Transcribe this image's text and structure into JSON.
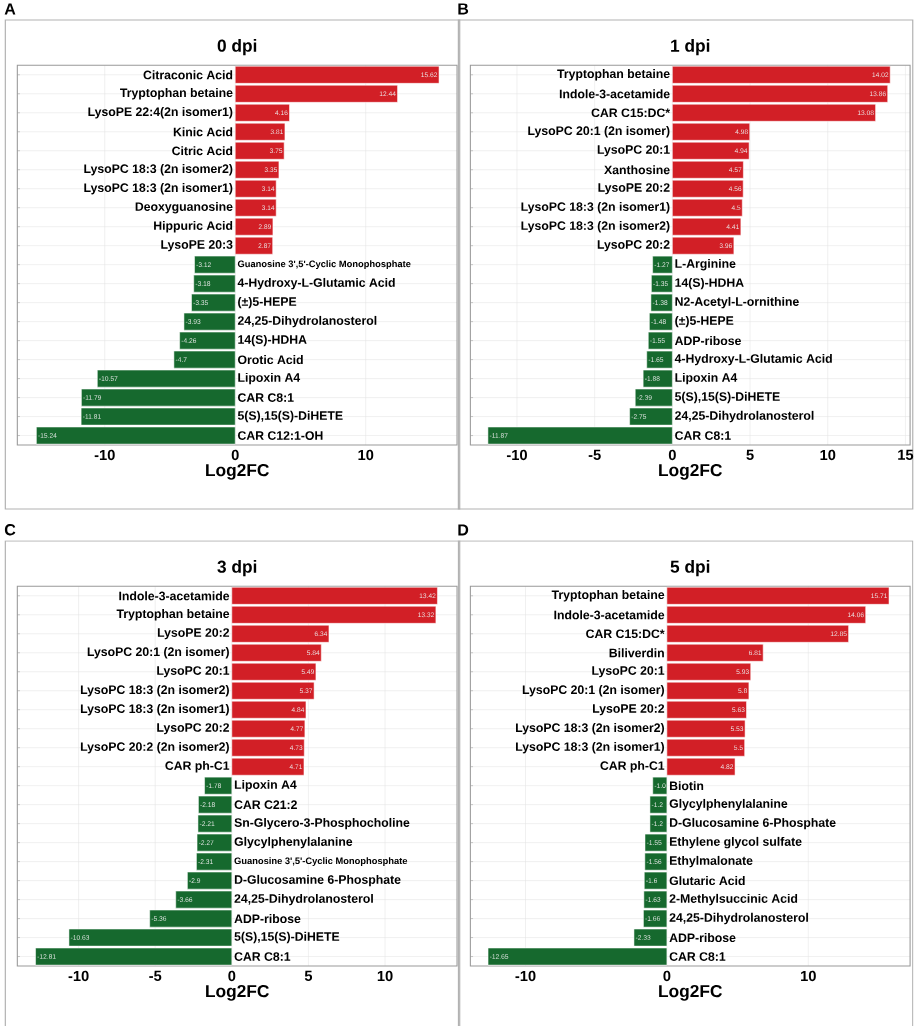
{
  "chart_data": [
    {
      "type": "bar",
      "orientation": "horizontal",
      "title": "0 dpi",
      "xlabel": "Log2FC",
      "annotations": [
        "A"
      ],
      "grid": true,
      "xlim": [
        -16.7,
        17
      ],
      "xticks": [
        -10,
        0,
        10
      ],
      "categories": [
        "Citraconic Acid",
        "Tryptophan betaine",
        "LysoPE 22:4(2n isomer1)",
        "Kinic Acid",
        "Citric Acid",
        "LysoPC 18:3 (2n isomer2)",
        "LysoPC 18:3 (2n isomer1)",
        "Deoxyguanosine",
        "Hippuric Acid",
        "LysoPE 20:3",
        "Guanosine 3',5'-Cyclic Monophosphate",
        "4-Hydroxy-L-Glutamic Acid",
        "(±)5-HEPE",
        "24,25-Dihydrolanosterol",
        "14(S)-HDHA",
        "Orotic Acid",
        "Lipoxin A4",
        "CAR C8:1",
        "5(S),15(S)-DiHETE",
        "CAR C12:1-OH"
      ],
      "values": [
        15.62,
        12.44,
        4.16,
        3.81,
        3.75,
        3.35,
        3.14,
        3.14,
        2.89,
        2.87,
        -3.12,
        -3.18,
        -3.35,
        -3.93,
        -4.26,
        -4.7,
        -10.57,
        -11.79,
        -11.81,
        -15.24
      ],
      "value_labels": [
        "15.62",
        "12.44",
        "4.16",
        "3.81",
        "3.75",
        "3.35",
        "3.14",
        "3.14",
        "2.89",
        "2.87",
        "-3.12",
        "-3.18",
        "-3.35",
        "-3.93",
        "-4.26",
        "-4.7",
        "-10.57",
        "-11.79",
        "-11.81",
        "-15.24"
      ],
      "colors": [
        "#d21f26",
        "#d21f26",
        "#d21f26",
        "#d21f26",
        "#d21f26",
        "#d21f26",
        "#d21f26",
        "#d21f26",
        "#d21f26",
        "#d21f26",
        "#16692e",
        "#16692e",
        "#16692e",
        "#16692e",
        "#16692e",
        "#16692e",
        "#16692e",
        "#16692e",
        "#16692e",
        "#16692e"
      ]
    },
    {
      "type": "bar",
      "orientation": "horizontal",
      "title": "1 dpi",
      "xlabel": "Log2FC",
      "annotations": [
        "B"
      ],
      "grid": true,
      "xlim": [
        -13.0,
        15.3
      ],
      "xticks": [
        -10,
        -5,
        0,
        5,
        10,
        15
      ],
      "categories": [
        "Tryptophan betaine",
        "Indole-3-acetamide",
        "CAR C15:DC*",
        "LysoPC 20:1 (2n isomer)",
        "LysoPC 20:1",
        "Xanthosine",
        "LysoPE 20:2",
        "LysoPC 18:3 (2n isomer1)",
        "LysoPC 18:3 (2n isomer2)",
        "LysoPC 20:2",
        "L-Arginine",
        "14(S)-HDHA",
        "N2-Acetyl-L-ornithine",
        "(±)5-HEPE",
        "ADP-ribose",
        "4-Hydroxy-L-Glutamic Acid",
        "Lipoxin A4",
        "5(S),15(S)-DiHETE",
        "24,25-Dihydrolanosterol",
        "CAR C8:1"
      ],
      "values": [
        14.02,
        13.86,
        13.08,
        4.98,
        4.94,
        4.57,
        4.56,
        4.5,
        4.41,
        3.96,
        -1.27,
        -1.35,
        -1.38,
        -1.48,
        -1.55,
        -1.65,
        -1.88,
        -2.39,
        -2.75,
        -11.87
      ],
      "value_labels": [
        "14.02",
        "13.86",
        "13.08",
        "4.98",
        "4.94",
        "4.57",
        "4.56",
        "4.5",
        "4.41",
        "3.96",
        "-1.27",
        "-1.35",
        "-1.38",
        "-1.48",
        "-1.55",
        "-1.65",
        "-1.88",
        "-2.39",
        "-2.75",
        "-11.87"
      ],
      "colors": [
        "#d21f26",
        "#d21f26",
        "#d21f26",
        "#d21f26",
        "#d21f26",
        "#d21f26",
        "#d21f26",
        "#d21f26",
        "#d21f26",
        "#d21f26",
        "#16692e",
        "#16692e",
        "#16692e",
        "#16692e",
        "#16692e",
        "#16692e",
        "#16692e",
        "#16692e",
        "#16692e",
        "#16692e"
      ]
    },
    {
      "type": "bar",
      "orientation": "horizontal",
      "title": "3 dpi",
      "xlabel": "Log2FC",
      "annotations": [
        "C"
      ],
      "grid": true,
      "xlim": [
        -14.0,
        14.7
      ],
      "xticks": [
        -10,
        -5,
        0,
        5,
        10
      ],
      "categories": [
        "Indole-3-acetamide",
        "Tryptophan betaine",
        "LysoPE 20:2",
        "LysoPC 20:1 (2n isomer)",
        "LysoPC 20:1",
        "LysoPC 18:3 (2n isomer2)",
        "LysoPC 18:3 (2n isomer1)",
        "LysoPC 20:2",
        "LysoPC 20:2 (2n isomer2)",
        "CAR ph-C1",
        "Lipoxin A4",
        "CAR C21:2",
        "Sn-Glycero-3-Phosphocholine",
        "Glycylphenylalanine",
        "Guanosine 3',5'-Cyclic Monophosphate",
        "D-Glucosamine 6-Phosphate",
        "24,25-Dihydrolanosterol",
        "ADP-ribose",
        "5(S),15(S)-DiHETE",
        "CAR C8:1"
      ],
      "values": [
        13.42,
        13.32,
        6.34,
        5.84,
        5.49,
        5.37,
        4.84,
        4.77,
        4.73,
        4.71,
        -1.78,
        -2.18,
        -2.21,
        -2.27,
        -2.31,
        -2.9,
        -3.66,
        -5.36,
        -10.63,
        -12.81
      ],
      "value_labels": [
        "13.42",
        "13.32",
        "6.34",
        "5.84",
        "5.49",
        "5.37",
        "4.84",
        "4.77",
        "4.73",
        "4.71",
        "-1.78",
        "-2.18",
        "-2.21",
        "-2.27",
        "-2.31",
        "-2.9",
        "-3.66",
        "-5.36",
        "-10.63",
        "-12.81"
      ],
      "colors": [
        "#d21f26",
        "#d21f26",
        "#d21f26",
        "#d21f26",
        "#d21f26",
        "#d21f26",
        "#d21f26",
        "#d21f26",
        "#d21f26",
        "#d21f26",
        "#16692e",
        "#16692e",
        "#16692e",
        "#16692e",
        "#16692e",
        "#16692e",
        "#16692e",
        "#16692e",
        "#16692e",
        "#16692e"
      ]
    },
    {
      "type": "bar",
      "orientation": "horizontal",
      "title": "5 dpi",
      "xlabel": "Log2FC",
      "annotations": [
        "D"
      ],
      "grid": true,
      "xlim": [
        -13.9,
        17.2
      ],
      "xticks": [
        -10,
        0,
        10
      ],
      "categories": [
        "Tryptophan betaine",
        "Indole-3-acetamide",
        "CAR C15:DC*",
        "Biliverdin",
        "LysoPC 20:1",
        "LysoPC 20:1 (2n isomer)",
        "LysoPE 20:2",
        "LysoPC 18:3 (2n isomer2)",
        "LysoPC 18:3 (2n isomer1)",
        "CAR ph-C1",
        "Biotin",
        "Glycylphenylalanine",
        "D-Glucosamine 6-Phosphate",
        "Ethylene glycol sulfate",
        "Ethylmalonate",
        "Glutaric Acid",
        "2-Methylsuccinic Acid",
        "24,25-Dihydrolanosterol",
        "ADP-ribose",
        "CAR C8:1"
      ],
      "values": [
        15.71,
        14.06,
        12.85,
        6.81,
        5.93,
        5.8,
        5.63,
        5.53,
        5.5,
        4.82,
        -1.0,
        -1.2,
        -1.2,
        -1.55,
        -1.56,
        -1.6,
        -1.63,
        -1.66,
        -2.33,
        -12.65
      ],
      "value_labels": [
        "15.71",
        "14.06",
        "12.85",
        "6.81",
        "5.93",
        "5.8",
        "5.63",
        "5.53",
        "5.5",
        "4.82",
        "-1.0",
        "-1.2",
        "-1.2",
        "-1.55",
        "-1.56",
        "-1.6",
        "-1.63",
        "-1.66",
        "-2.33",
        "-12.65"
      ],
      "colors": [
        "#d21f26",
        "#d21f26",
        "#d21f26",
        "#d21f26",
        "#d21f26",
        "#d21f26",
        "#d21f26",
        "#d21f26",
        "#d21f26",
        "#d21f26",
        "#16692e",
        "#16692e",
        "#16692e",
        "#16692e",
        "#16692e",
        "#16692e",
        "#16692e",
        "#16692e",
        "#16692e",
        "#16692e"
      ]
    }
  ]
}
